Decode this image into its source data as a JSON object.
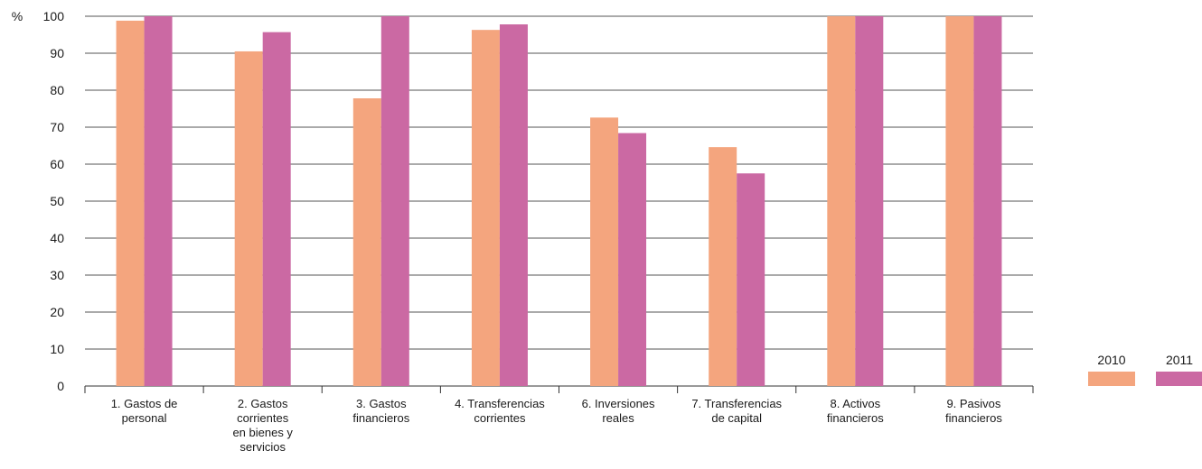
{
  "chart_data": {
    "type": "bar",
    "unit_label": "%",
    "ylim": [
      0,
      100
    ],
    "yticks": [
      0,
      10,
      20,
      30,
      40,
      50,
      60,
      70,
      80,
      90,
      100
    ],
    "grid": true,
    "legend_position": "bottom-right",
    "categories": [
      [
        "1. Gastos de",
        "personal"
      ],
      [
        "2. Gastos",
        "corrientes",
        "en bienes y",
        "servicios"
      ],
      [
        "3. Gastos",
        "financieros"
      ],
      [
        "4. Transferencias",
        "corrientes"
      ],
      [
        "6. Inversiones",
        "reales"
      ],
      [
        "7. Transferencias",
        "de capital"
      ],
      [
        "8. Activos",
        "financieros"
      ],
      [
        "9. Pasivos",
        "financieros"
      ]
    ],
    "series": [
      {
        "name": "2010",
        "color": "#f4a57e",
        "values": [
          98.8,
          90.5,
          77.8,
          96.3,
          72.6,
          64.6,
          100,
          100
        ]
      },
      {
        "name": "2011",
        "color": "#cb69a3",
        "values": [
          100,
          95.7,
          100,
          97.8,
          68.4,
          57.5,
          100,
          100
        ]
      }
    ]
  }
}
